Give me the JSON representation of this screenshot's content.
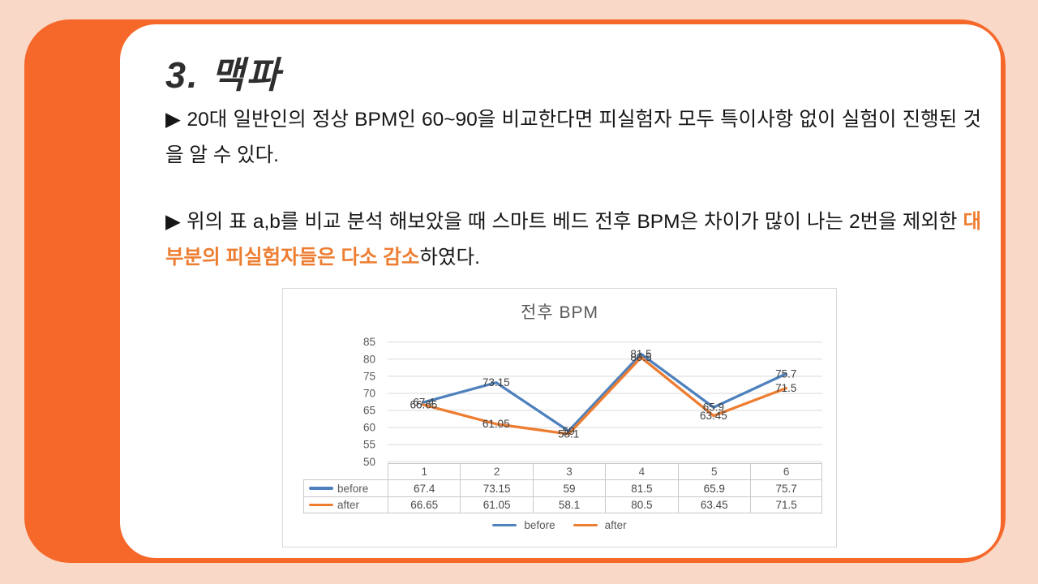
{
  "slide": {
    "title": "3. 맥파",
    "paragraph1": "▶ 20대 일반인의 정상 BPM인 60~90을 비교한다면 피실험자 모두 특이사항 없이 실험이 진행된 것을 알 수 있다.",
    "paragraph2": {
      "prefix": "▶ 위의 표 a,b를 비교 분석 해보았을 때 스마트 베드 전후 BPM은 차이가 많이 나는 2번을 제외한 ",
      "highlight": "대부분의 피실험자들은 다소 감소",
      "suffix": "하였다."
    }
  },
  "colors": {
    "background_peach": "#FAD8C8",
    "accent_orange": "#F6682A",
    "highlight_text": "#ED7D31",
    "series_before": "#4E81BD",
    "series_after": "#ED7D31",
    "gridline": "#D9D9D9",
    "axis_text": "#595959",
    "data_label": "#3F3F3F"
  },
  "chart_data": {
    "type": "line",
    "title": "전후 BPM",
    "categories": [
      "1",
      "2",
      "3",
      "4",
      "5",
      "6"
    ],
    "series": [
      {
        "name": "before",
        "color": "#4E81BD",
        "values": [
          67.4,
          73.15,
          59,
          81.5,
          65.9,
          75.7
        ]
      },
      {
        "name": "after",
        "color": "#ED7D31",
        "values": [
          66.65,
          61.05,
          58.1,
          80.5,
          63.45,
          71.5
        ]
      }
    ],
    "xlabel": "",
    "ylabel": "",
    "ylim": [
      50,
      85
    ],
    "ytick_step": 5,
    "grid": true,
    "data_labels": "center",
    "legend_position": "bottom",
    "data_table": true
  }
}
